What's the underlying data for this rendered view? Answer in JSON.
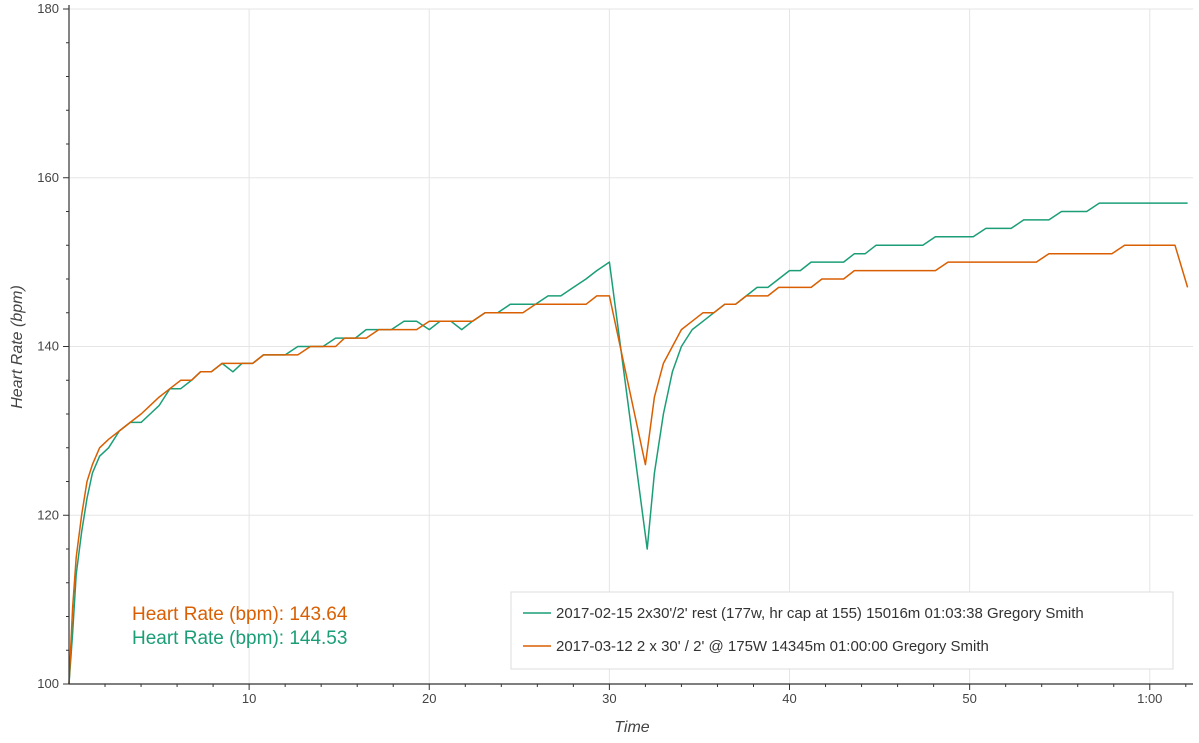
{
  "chart_data": {
    "type": "line",
    "xlabel": "Time",
    "ylabel": "Heart Rate (bpm)",
    "xlim": [
      0,
      62.4
    ],
    "ylim": [
      100,
      180
    ],
    "x_ticks": [
      {
        "value": 10,
        "label": "10"
      },
      {
        "value": 20,
        "label": "20"
      },
      {
        "value": 30,
        "label": "30"
      },
      {
        "value": 40,
        "label": "40"
      },
      {
        "value": 50,
        "label": "50"
      },
      {
        "value": 60,
        "label": "1:00"
      }
    ],
    "y_ticks": [
      {
        "value": 100,
        "label": "100"
      },
      {
        "value": 120,
        "label": "120"
      },
      {
        "value": 140,
        "label": "140"
      },
      {
        "value": 160,
        "label": "160"
      },
      {
        "value": 180,
        "label": "180"
      }
    ],
    "grid": true,
    "legend_position": "bottom-right",
    "series": [
      {
        "name": "2017-02-15 2x30'/2' rest (177w, hr cap at 155) 15016m 01:03:38 Gregory Smith",
        "color": "#1b9e77",
        "x": [
          0.0,
          0.2,
          0.4,
          0.7,
          1.0,
          1.3,
          1.7,
          2.2,
          2.8,
          3.4,
          4.0,
          4.5,
          5.0,
          5.6,
          6.2,
          6.8,
          7.3,
          7.9,
          8.5,
          9.1,
          9.6,
          10.2,
          10.8,
          11.4,
          12.0,
          12.7,
          13.4,
          14.1,
          14.8,
          15.3,
          15.9,
          16.5,
          17.2,
          17.9,
          18.6,
          19.3,
          20.0,
          20.6,
          21.2,
          21.8,
          22.4,
          23.1,
          23.8,
          24.5,
          25.2,
          25.9,
          26.6,
          27.3,
          28.0,
          28.7,
          29.3,
          30.0,
          32.1,
          32.5,
          33.0,
          33.5,
          34.0,
          34.6,
          35.2,
          35.8,
          36.4,
          37.0,
          37.6,
          38.2,
          38.8,
          39.4,
          40.0,
          40.6,
          41.2,
          41.8,
          42.4,
          43.0,
          43.6,
          44.2,
          44.8,
          45.4,
          46.0,
          46.7,
          47.4,
          48.1,
          48.8,
          49.5,
          50.2,
          50.9,
          51.6,
          52.3,
          53.0,
          53.7,
          54.4,
          55.1,
          55.8,
          56.5,
          57.2,
          57.9,
          58.6,
          59.3,
          60.0,
          60.7,
          61.4,
          62.1
        ],
        "values": [
          100,
          106,
          113,
          118,
          122,
          125,
          127,
          128,
          130,
          131,
          131,
          132,
          133,
          135,
          135,
          136,
          137,
          137,
          138,
          137,
          138,
          138,
          139,
          139,
          139,
          140,
          140,
          140,
          141,
          141,
          141,
          142,
          142,
          142,
          143,
          143,
          142,
          143,
          143,
          142,
          143,
          144,
          144,
          145,
          145,
          145,
          146,
          146,
          147,
          148,
          149,
          150,
          116,
          125,
          132,
          137,
          140,
          142,
          143,
          144,
          145,
          145,
          146,
          147,
          147,
          148,
          149,
          149,
          150,
          150,
          150,
          150,
          151,
          151,
          152,
          152,
          152,
          152,
          152,
          153,
          153,
          153,
          153,
          154,
          154,
          154,
          155,
          155,
          155,
          156,
          156,
          156,
          157,
          157,
          157,
          157,
          157,
          157,
          157,
          157
        ]
      },
      {
        "name": "2017-03-12 2 x 30' / 2' @ 175W 14345m 01:00:00 Gregory Smith",
        "color": "#d95f02",
        "x": [
          0.0,
          0.2,
          0.4,
          0.7,
          1.0,
          1.3,
          1.7,
          2.2,
          2.8,
          3.4,
          4.0,
          4.5,
          5.0,
          5.6,
          6.2,
          6.8,
          7.3,
          7.9,
          8.5,
          9.1,
          9.6,
          10.2,
          10.8,
          11.4,
          12.0,
          12.7,
          13.4,
          14.1,
          14.8,
          15.3,
          15.9,
          16.5,
          17.2,
          17.9,
          18.6,
          19.3,
          20.0,
          20.6,
          21.2,
          21.8,
          22.4,
          23.1,
          23.8,
          24.5,
          25.2,
          25.9,
          26.6,
          27.3,
          28.0,
          28.7,
          29.3,
          30.0,
          32.0,
          32.5,
          33.0,
          33.5,
          34.0,
          34.6,
          35.2,
          35.8,
          36.4,
          37.0,
          37.6,
          38.2,
          38.8,
          39.4,
          40.0,
          40.6,
          41.2,
          41.8,
          42.4,
          43.0,
          43.6,
          44.2,
          44.8,
          45.4,
          46.0,
          46.7,
          47.4,
          48.1,
          48.8,
          49.5,
          50.2,
          50.9,
          51.6,
          52.3,
          53.0,
          53.7,
          54.4,
          55.1,
          55.8,
          56.5,
          57.2,
          57.9,
          58.6,
          59.3,
          60.0,
          60.7,
          61.4,
          62.1
        ],
        "values": [
          100,
          109,
          115,
          120,
          124,
          126,
          128,
          129,
          130,
          131,
          132,
          133,
          134,
          135,
          136,
          136,
          137,
          137,
          138,
          138,
          138,
          138,
          139,
          139,
          139,
          139,
          140,
          140,
          140,
          141,
          141,
          141,
          142,
          142,
          142,
          142,
          143,
          143,
          143,
          143,
          143,
          144,
          144,
          144,
          144,
          145,
          145,
          145,
          145,
          145,
          146,
          146,
          126,
          134,
          138,
          140,
          142,
          143,
          144,
          144,
          145,
          145,
          146,
          146,
          146,
          147,
          147,
          147,
          147,
          148,
          148,
          148,
          149,
          149,
          149,
          149,
          149,
          149,
          149,
          149,
          150,
          150,
          150,
          150,
          150,
          150,
          150,
          150,
          151,
          151,
          151,
          151,
          151,
          151,
          152,
          152,
          152,
          152,
          152,
          147
        ]
      }
    ],
    "annotations": [
      {
        "text": "Heart Rate (bpm): 143.64",
        "color": "#d95f02"
      },
      {
        "text": "Heart Rate (bpm): 144.53",
        "color": "#1b9e77"
      }
    ]
  }
}
